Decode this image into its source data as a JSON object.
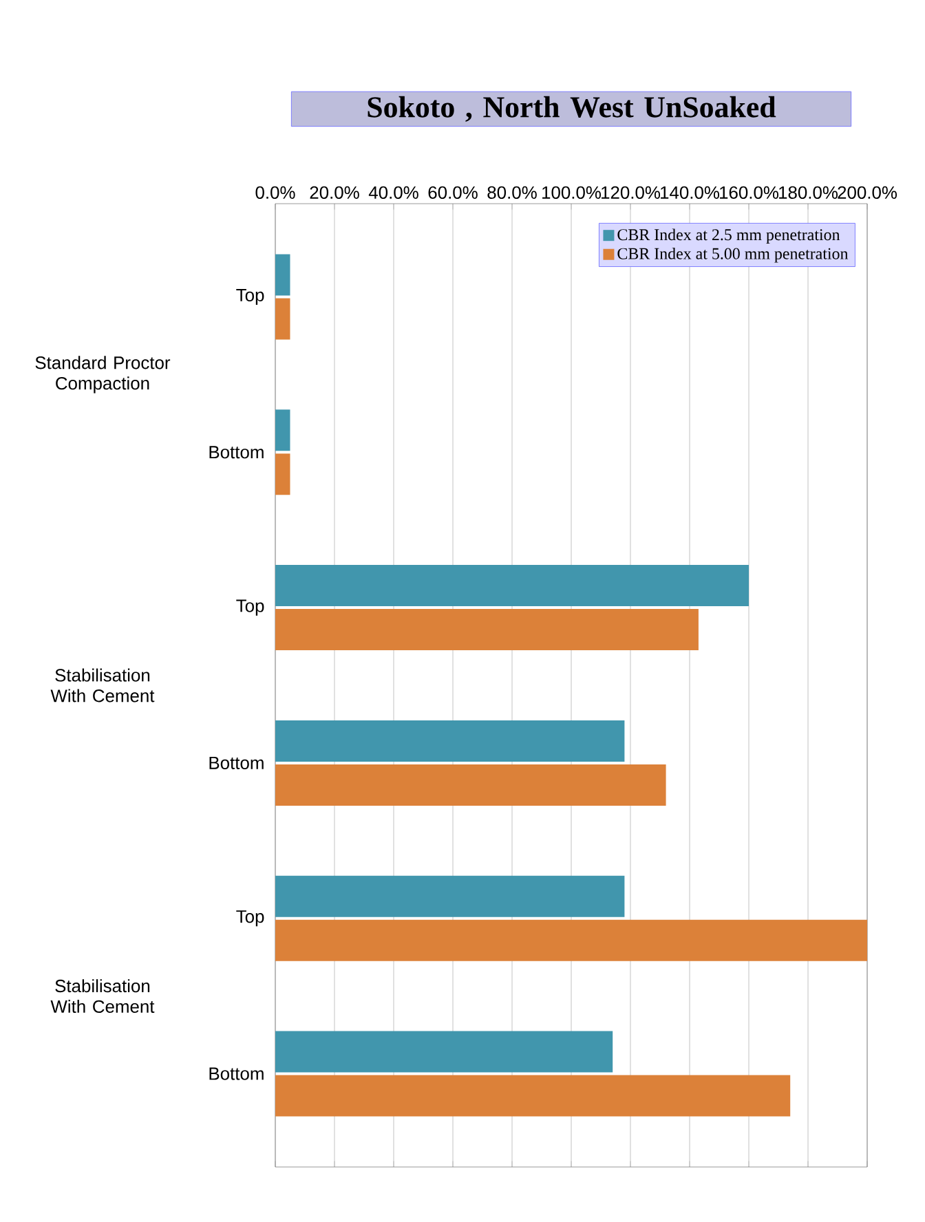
{
  "chart_data": {
    "type": "bar",
    "orientation": "horizontal",
    "title": "Sokoto , North West  UnSoaked",
    "categories": [
      "Top",
      "Bottom",
      "Top",
      "Bottom",
      "Top",
      "Bottom"
    ],
    "annotations": [
      "Standard Proctor Compaction",
      "Stabilisation With Cement",
      "Stabilisation With Cement"
    ],
    "series": [
      {
        "name": "CBR Index at 2.5 mm penetration",
        "color": "#4196ad",
        "values": [
          5,
          5,
          160,
          118,
          118,
          114
        ]
      },
      {
        "name": "CBR Index at 5.00 mm penetration",
        "color": "#dc8139",
        "values": [
          5,
          5,
          143,
          132,
          200,
          174
        ]
      }
    ],
    "xlim": [
      0,
      200
    ],
    "xticks": [
      {
        "value": 0,
        "label": "0.0%"
      },
      {
        "value": 20,
        "label": "20.0%"
      },
      {
        "value": 40,
        "label": "40.0%"
      },
      {
        "value": 60,
        "label": "60.0%"
      },
      {
        "value": 80,
        "label": "80.0%"
      },
      {
        "value": 100,
        "label": "100.0%"
      },
      {
        "value": 120,
        "label": "120.0%"
      },
      {
        "value": 140,
        "label": "140.0%"
      },
      {
        "value": 160,
        "label": "160.0%"
      },
      {
        "value": 180,
        "label": "180.0%"
      },
      {
        "value": 200,
        "label": "200.0%"
      }
    ],
    "grid": "x",
    "legend": "top right"
  }
}
